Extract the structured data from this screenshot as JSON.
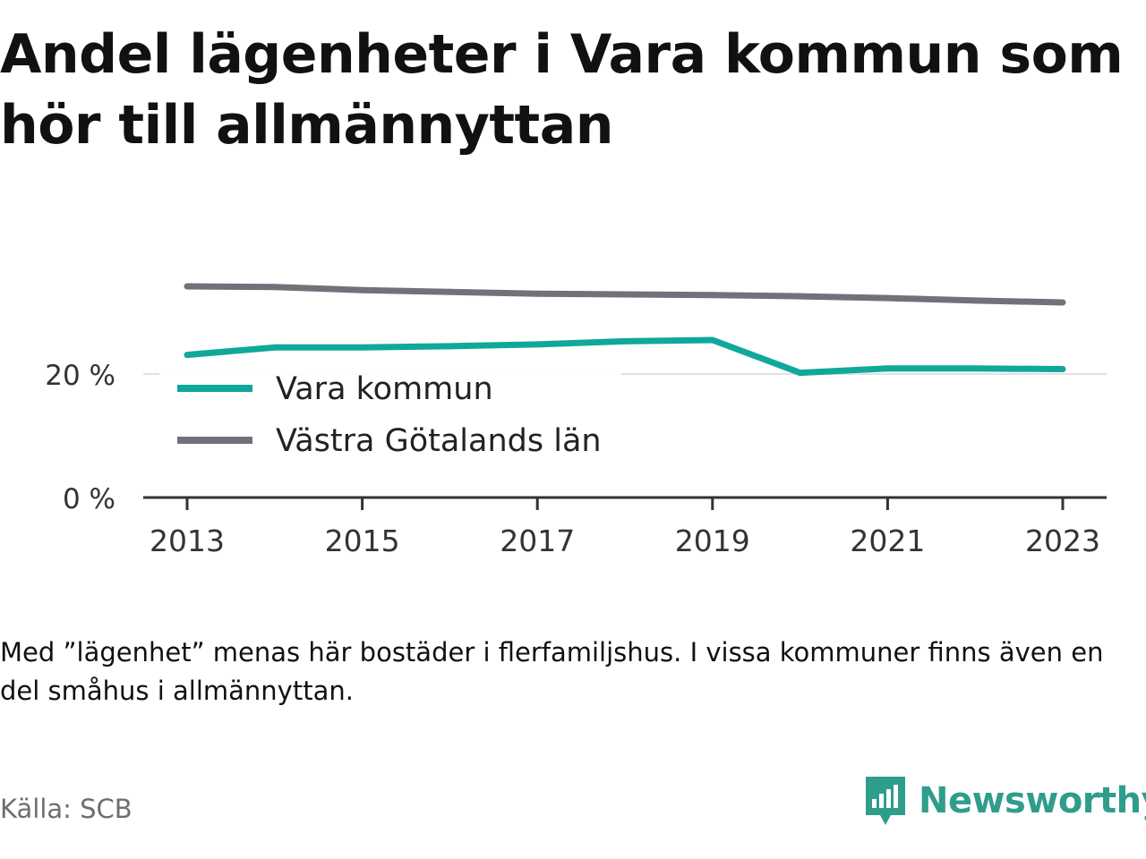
{
  "title": "Andel lägenheter i Vara kommun som hör till allmännyttan",
  "note": "Med ”lägenhet” menas här bostäder i flerfamiljshus. I vissa kommuner finns även en del småhus i allmännyttan.",
  "source": "Källa: SCB",
  "brand": {
    "name": "Newsworthy",
    "icon": "bar-chart-speech-bubble-icon",
    "color": "#2f9d8c"
  },
  "chart_data": {
    "type": "line",
    "x": [
      2013,
      2014,
      2015,
      2016,
      2017,
      2018,
      2019,
      2020,
      2021,
      2022,
      2023
    ],
    "x_ticks": [
      2013,
      2015,
      2017,
      2019,
      2021,
      2023
    ],
    "x_tick_labels": [
      "2013",
      "2015",
      "2017",
      "2019",
      "2021",
      "2023"
    ],
    "y_ticks": [
      0,
      20
    ],
    "y_tick_labels": [
      "0 %",
      "20 %"
    ],
    "ylim": [
      0,
      35
    ],
    "grid": "horizontal",
    "legend_position": "inside-left",
    "series": [
      {
        "name": "Vara kommun",
        "color": "#10a89a",
        "values": [
          23.1,
          24.3,
          24.3,
          24.5,
          24.8,
          25.3,
          25.5,
          20.2,
          20.9,
          20.9,
          20.8
        ]
      },
      {
        "name": "Västra Götalands län",
        "color": "#72717a",
        "values": [
          34.2,
          34.1,
          33.6,
          33.3,
          33.0,
          32.9,
          32.8,
          32.6,
          32.3,
          31.9,
          31.6
        ]
      }
    ]
  }
}
